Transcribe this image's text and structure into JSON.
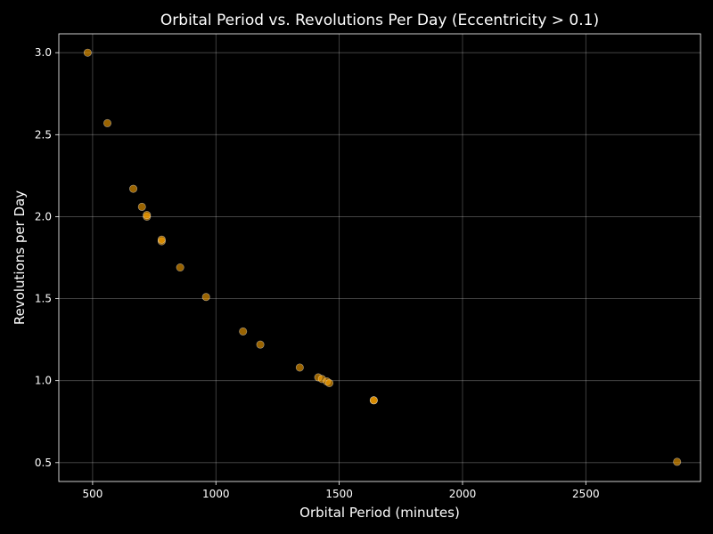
{
  "chart_data": {
    "type": "scatter",
    "title": "Orbital Period vs. Revolutions Per Day (Eccentricity > 0.1)",
    "xlabel": "Orbital Period (minutes)",
    "ylabel": "Revolutions per Day",
    "xlim": [
      363,
      2965
    ],
    "ylim": [
      0.385,
      3.115
    ],
    "xticks": [
      500,
      1000,
      1500,
      2000,
      2500
    ],
    "xtick_labels": [
      "500",
      "1000",
      "1500",
      "2000",
      "2500"
    ],
    "yticks": [
      0.5,
      1.0,
      1.5,
      2.0,
      2.5,
      3.0
    ],
    "ytick_labels": [
      "0.5",
      "1.0",
      "1.5",
      "2.0",
      "2.5",
      "3.0"
    ],
    "grid": true,
    "point_color": "#ffa500",
    "background": "#000000",
    "x": [
      480,
      560,
      665,
      700,
      720,
      720,
      780,
      780,
      855,
      960,
      1110,
      1180,
      1340,
      1415,
      1430,
      1450,
      1460,
      1640,
      1640,
      2870
    ],
    "y": [
      3.0,
      2.57,
      2.17,
      2.06,
      2.0,
      2.01,
      1.85,
      1.86,
      1.69,
      1.51,
      1.3,
      1.22,
      1.08,
      1.02,
      1.01,
      0.995,
      0.985,
      0.88,
      0.88,
      0.505
    ]
  }
}
